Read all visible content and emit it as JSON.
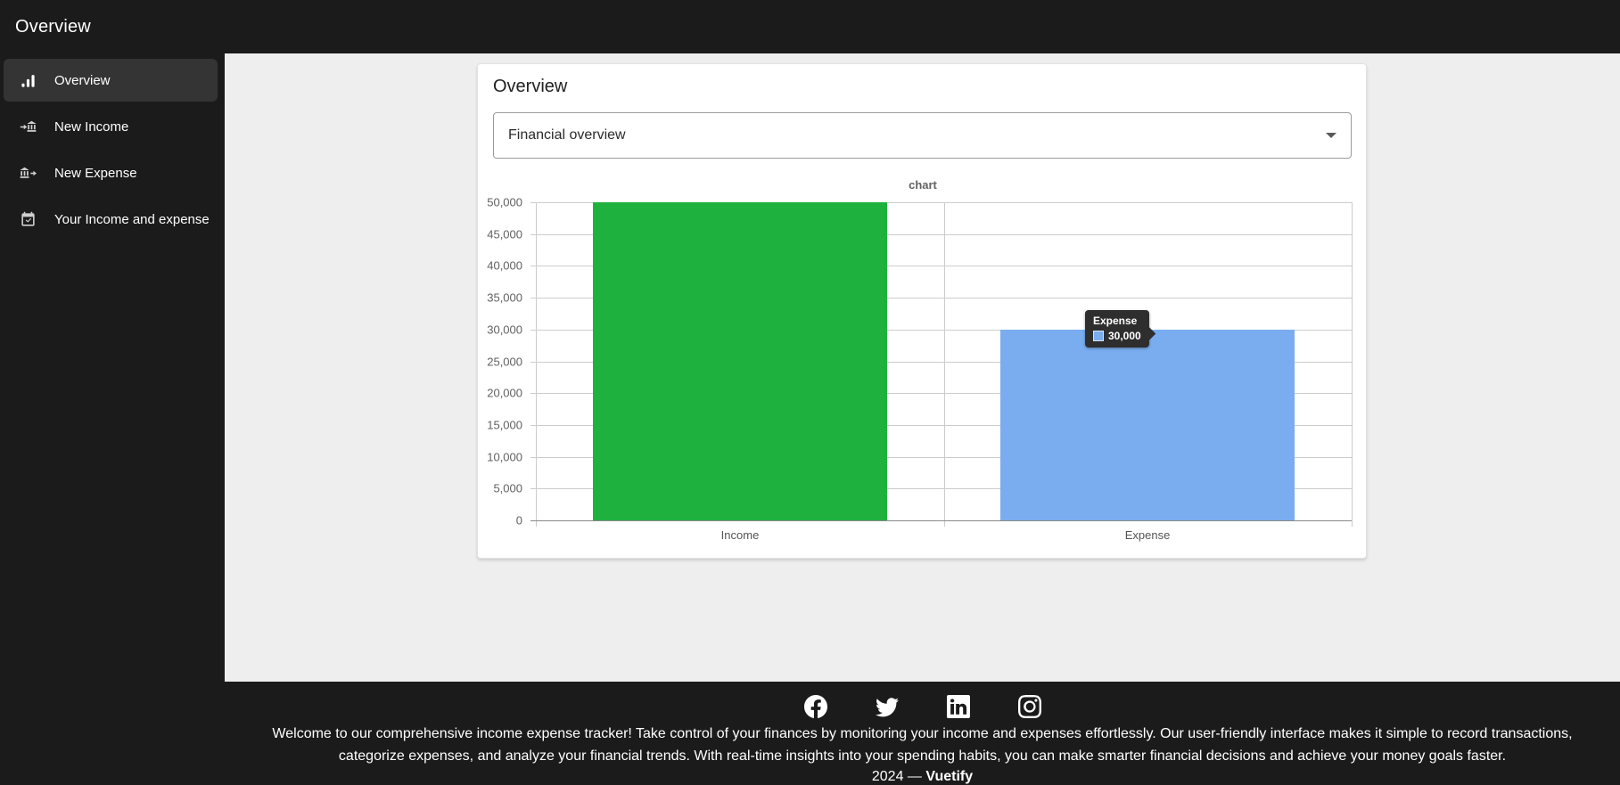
{
  "app_bar": {
    "title": "Overview"
  },
  "sidebar": {
    "items": [
      {
        "label": "Overview",
        "icon": "bar-chart-icon",
        "active": true
      },
      {
        "label": "New Income",
        "icon": "bank-transfer-in-icon",
        "active": false
      },
      {
        "label": "New Expense",
        "icon": "bank-transfer-out-icon",
        "active": false
      },
      {
        "label": "Your Income and expense",
        "icon": "calendar-check-icon",
        "active": false
      }
    ]
  },
  "card": {
    "title": "Overview",
    "select": {
      "value": "Financial overview"
    }
  },
  "chart_data": {
    "type": "bar",
    "title": "chart",
    "categories": [
      "Income",
      "Expense"
    ],
    "values": [
      50000,
      30000
    ],
    "bar_colors": [
      "#1eb13e",
      "#7aadf0"
    ],
    "ylim": [
      0,
      50000
    ],
    "ytick_step": 5000,
    "ytick_labels": [
      "0",
      "5,000",
      "10,000",
      "15,000",
      "20,000",
      "25,000",
      "30,000",
      "35,000",
      "40,000",
      "45,000",
      "50,000"
    ],
    "grid": true,
    "legend": "none"
  },
  "chart_tooltip": {
    "series": "Expense",
    "value": "30,000",
    "swatch_color": "#7aadf0"
  },
  "footer": {
    "social": [
      {
        "name": "facebook"
      },
      {
        "name": "twitter"
      },
      {
        "name": "linkedin"
      },
      {
        "name": "instagram"
      }
    ],
    "description": "Welcome to our comprehensive income expense tracker! Take control of your finances by monitoring your income and expenses effortlessly. Our user-friendly interface makes it simple to record transactions, categorize expenses, and analyze your financial trends. With real-time insights into your spending habits, you can make smarter financial decisions and achieve your money goals faster.",
    "year_prefix": "2024 —",
    "brand": "Vuetify"
  },
  "colors": {
    "dark_bg": "#1b1b1b",
    "active_item_bg": "#343434",
    "content_bg": "#eeeeee",
    "income_green": "#1eb13e",
    "expense_blue": "#7aadf0",
    "tooltip_bg": "#2e2e2e"
  }
}
